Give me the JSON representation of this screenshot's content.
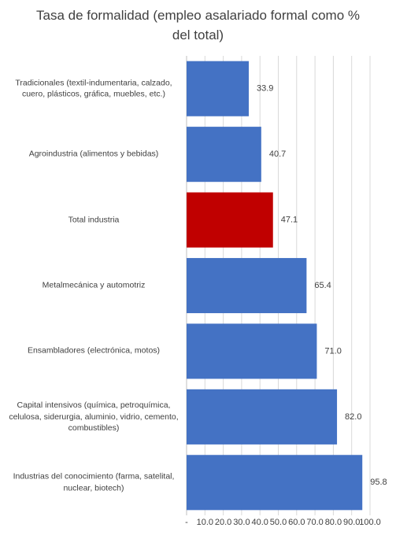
{
  "chart_data": {
    "type": "bar",
    "orientation": "horizontal",
    "title": "Tasa de formalidad (empleo asalariado formal como % del total)",
    "categories": [
      "Tradicionales (textil-indumentaria, calzado, cuero, plásticos, gráfica, muebles, etc.)",
      "Agroindustria (alimentos y bebidas)",
      "Total industria",
      "Metalmecánica y automotriz",
      "Ensambladores (electrónica, motos)",
      "Capital intensivos (química, petroquímica, celulosa, siderurgia, aluminio, vidrio, cemento, combustibles)",
      "Industrias del conocimiento (farma, satelital, nuclear, biotech)"
    ],
    "values": [
      33.9,
      40.7,
      47.1,
      65.4,
      71.0,
      82.0,
      95.8
    ],
    "value_labels": [
      "33.9",
      "40.7",
      "47.1",
      "65.4",
      "71.0",
      "82.0",
      "95.8"
    ],
    "colors": [
      "#4472c4",
      "#4472c4",
      "#c00000",
      "#4472c4",
      "#4472c4",
      "#4472c4",
      "#4472c4"
    ],
    "xlim": [
      0,
      100
    ],
    "xticks": [
      {
        "value": 0,
        "label": "-"
      },
      {
        "value": 10,
        "label": "10.0"
      },
      {
        "value": 20,
        "label": "20.0"
      },
      {
        "value": 30,
        "label": "30.0"
      },
      {
        "value": 40,
        "label": "40.0"
      },
      {
        "value": 50,
        "label": "50.0"
      },
      {
        "value": 60,
        "label": "60.0"
      },
      {
        "value": 70,
        "label": "70.0"
      },
      {
        "value": 80,
        "label": "80.0"
      },
      {
        "value": 90,
        "label": "90.0"
      },
      {
        "value": 100,
        "label": "100.0"
      }
    ],
    "grid": true
  }
}
